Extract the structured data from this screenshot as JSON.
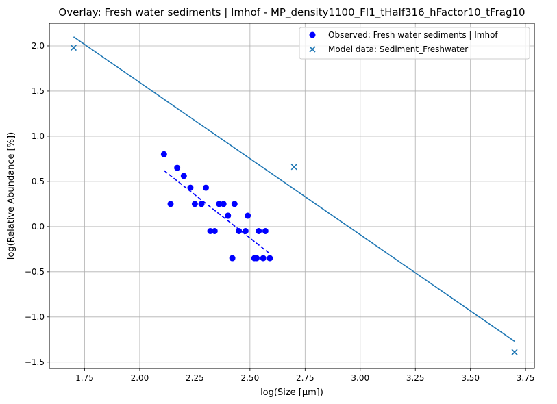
{
  "chart_data": {
    "type": "scatter",
    "title": "Overlay: Fresh water sediments | Imhof - MP_density1100_FI1_tHalf316_hFactor10_tFrag10",
    "xlabel": "log(Size [μm])",
    "ylabel": "log(Relative Abundance [%])",
    "xlim": [
      1.59,
      3.79
    ],
    "ylim": [
      -1.57,
      2.25
    ],
    "xticks": [
      1.75,
      2.0,
      2.25,
      2.5,
      2.75,
      3.0,
      3.25,
      3.5,
      3.75
    ],
    "xtick_labels": [
      "1.75",
      "2.00",
      "2.25",
      "2.50",
      "2.75",
      "3.00",
      "3.25",
      "3.50",
      "3.75"
    ],
    "yticks": [
      -1.5,
      -1.0,
      -0.5,
      0.0,
      0.5,
      1.0,
      1.5,
      2.0
    ],
    "ytick_labels": [
      "−1.5",
      "−1.0",
      "−0.5",
      "0.0",
      "0.5",
      "1.0",
      "1.5",
      "2.0"
    ],
    "grid": true,
    "legend_position": "top-right",
    "colors": {
      "observed": "#0000ff",
      "model": "#1f77b4"
    },
    "series": [
      {
        "name": "Observed: Fresh water sediments | Imhof",
        "kind": "scatter-circle",
        "x": [
          2.11,
          2.14,
          2.17,
          2.2,
          2.23,
          2.25,
          2.28,
          2.3,
          2.32,
          2.34,
          2.36,
          2.38,
          2.4,
          2.4,
          2.42,
          2.43,
          2.45,
          2.48,
          2.49,
          2.52,
          2.53,
          2.54,
          2.56,
          2.57,
          2.59
        ],
        "y": [
          0.8,
          0.25,
          0.65,
          0.56,
          0.43,
          0.25,
          0.25,
          0.43,
          -0.05,
          -0.05,
          0.25,
          0.25,
          0.12,
          0.12,
          -0.35,
          0.25,
          -0.05,
          -0.05,
          0.12,
          -0.35,
          -0.35,
          -0.05,
          -0.35,
          -0.05,
          -0.35
        ]
      },
      {
        "name": "Model data: Sediment_Freshwater",
        "kind": "scatter-x",
        "x": [
          1.7,
          2.7,
          3.7
        ],
        "y": [
          1.98,
          0.66,
          -1.39
        ]
      },
      {
        "kind": "line-solid",
        "x": [
          1.7,
          3.7
        ],
        "y": [
          2.1,
          -1.27
        ]
      },
      {
        "kind": "line-dashed",
        "x": [
          2.11,
          2.59
        ],
        "y": [
          0.62,
          -0.3
        ]
      }
    ]
  }
}
